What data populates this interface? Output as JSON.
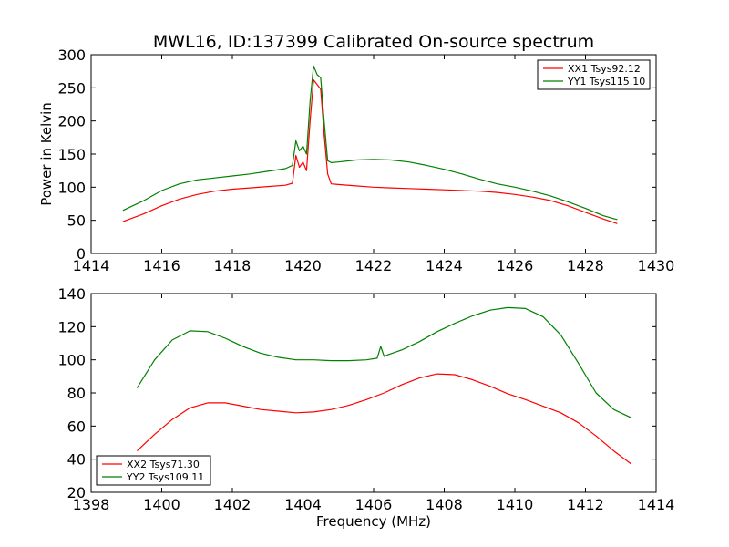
{
  "chart_data": [
    {
      "type": "line",
      "title": "MWL16, ID:137399 Calibrated On-source spectrum",
      "xlabel": "",
      "ylabel": "Power in Kelvin",
      "xlim": [
        1414,
        1430
      ],
      "ylim": [
        0,
        300
      ],
      "xticks": [
        "1414",
        "1416",
        "1418",
        "1420",
        "1422",
        "1424",
        "1426",
        "1428",
        "1430"
      ],
      "yticks": [
        "0",
        "50",
        "100",
        "150",
        "200",
        "250",
        "300"
      ],
      "legend_position": "top-right",
      "series": [
        {
          "name": "XX1 Tsys92.12",
          "color": "#ff0000",
          "x": [
            1414.9,
            1415.5,
            1416.0,
            1416.5,
            1417.0,
            1417.5,
            1418.0,
            1418.5,
            1419.0,
            1419.5,
            1419.7,
            1419.8,
            1419.9,
            1420.0,
            1420.1,
            1420.2,
            1420.3,
            1420.4,
            1420.5,
            1420.6,
            1420.7,
            1420.8,
            1421.0,
            1421.5,
            1422.0,
            1422.5,
            1423.0,
            1423.5,
            1424.0,
            1424.5,
            1425.0,
            1425.5,
            1426.0,
            1426.5,
            1427.0,
            1427.5,
            1428.0,
            1428.5,
            1428.9
          ],
          "y": [
            48,
            60,
            72,
            82,
            89,
            94,
            97,
            99,
            101,
            103,
            106,
            148,
            130,
            138,
            125,
            200,
            262,
            255,
            248,
            180,
            120,
            105,
            104,
            102,
            100,
            99,
            98,
            97,
            96,
            95,
            94,
            92,
            89,
            85,
            80,
            72,
            62,
            52,
            45
          ]
        },
        {
          "name": "YY1 Tsys115.10",
          "color": "#008000",
          "x": [
            1414.9,
            1415.5,
            1416.0,
            1416.5,
            1417.0,
            1417.5,
            1418.0,
            1418.5,
            1419.0,
            1419.5,
            1419.7,
            1419.8,
            1419.9,
            1420.0,
            1420.1,
            1420.2,
            1420.3,
            1420.4,
            1420.5,
            1420.6,
            1420.7,
            1420.8,
            1421.0,
            1421.5,
            1422.0,
            1422.5,
            1423.0,
            1423.5,
            1424.0,
            1424.5,
            1425.0,
            1425.5,
            1426.0,
            1426.5,
            1427.0,
            1427.5,
            1428.0,
            1428.5,
            1428.9
          ],
          "y": [
            65,
            80,
            95,
            105,
            111,
            114,
            117,
            120,
            124,
            128,
            133,
            170,
            155,
            162,
            150,
            230,
            283,
            270,
            265,
            200,
            140,
            137,
            138,
            141,
            142,
            141,
            138,
            133,
            127,
            120,
            112,
            105,
            100,
            94,
            87,
            78,
            68,
            57,
            51
          ]
        }
      ]
    },
    {
      "type": "line",
      "title": "",
      "xlabel": "Frequency (MHz)",
      "ylabel": "",
      "xlim": [
        1398,
        1414
      ],
      "ylim": [
        20,
        140
      ],
      "xticks": [
        "1398",
        "1400",
        "1402",
        "1404",
        "1406",
        "1408",
        "1410",
        "1412",
        "1414"
      ],
      "yticks": [
        "20",
        "40",
        "60",
        "80",
        "100",
        "120",
        "140"
      ],
      "legend_position": "bottom-left",
      "series": [
        {
          "name": "XX2 Tsys71.30",
          "color": "#ff0000",
          "x": [
            1399.3,
            1399.8,
            1400.3,
            1400.8,
            1401.3,
            1401.8,
            1402.3,
            1402.8,
            1403.3,
            1403.8,
            1404.3,
            1404.8,
            1405.3,
            1405.8,
            1406.3,
            1406.8,
            1407.3,
            1407.8,
            1408.3,
            1408.8,
            1409.3,
            1409.8,
            1410.3,
            1410.8,
            1411.3,
            1411.8,
            1412.3,
            1412.8,
            1413.3
          ],
          "y": [
            45,
            55,
            64,
            71,
            74,
            74,
            72,
            70,
            69,
            68,
            68.5,
            70,
            72.5,
            76,
            80,
            85,
            89,
            91.5,
            91,
            88,
            84,
            79.5,
            76,
            72,
            68,
            62,
            54,
            45,
            37
          ]
        },
        {
          "name": "YY2 Tsys109.11",
          "color": "#008000",
          "x": [
            1399.3,
            1399.8,
            1400.3,
            1400.8,
            1401.3,
            1401.8,
            1402.3,
            1402.8,
            1403.3,
            1403.8,
            1404.3,
            1404.8,
            1405.3,
            1405.8,
            1406.1,
            1406.2,
            1406.3,
            1406.4,
            1406.8,
            1407.3,
            1407.8,
            1408.3,
            1408.8,
            1409.3,
            1409.8,
            1410.3,
            1410.8,
            1411.3,
            1411.8,
            1412.3,
            1412.8,
            1413.3
          ],
          "y": [
            83,
            100,
            112,
            117.5,
            117,
            113,
            108,
            104,
            101.5,
            100,
            100,
            99.5,
            99.5,
            100,
            101,
            108,
            102,
            103,
            106,
            111,
            117,
            122,
            126.5,
            130,
            131.5,
            131,
            126,
            115,
            98,
            80,
            70,
            65
          ]
        }
      ]
    }
  ]
}
